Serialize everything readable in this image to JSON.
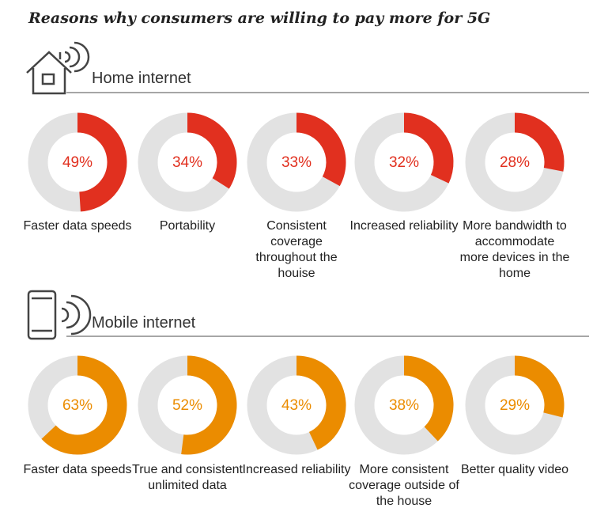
{
  "title": "Reasons why consumers are willing to pay more for 5G",
  "chart_data": [
    {
      "type": "donut",
      "title": "Home internet",
      "color": "#e1301f",
      "track_color": "#e2e2e2",
      "categories": [
        "Faster data speeds",
        "Portability",
        "Consistent coverage throughout the houise",
        "Increased reliability",
        "More bandwidth to accommodate more devices in the home"
      ],
      "values": [
        49,
        34,
        33,
        32,
        28
      ],
      "value_labels": [
        "49%",
        "34%",
        "33%",
        "32%",
        "28%"
      ]
    },
    {
      "type": "donut",
      "title": "Mobile internet",
      "color": "#eb8c00",
      "track_color": "#e2e2e2",
      "categories": [
        "Faster data speeds",
        "True and consistent unlimited data",
        "Increased reliability",
        "More consistent coverage outside of the house",
        "Better quality video"
      ],
      "values": [
        63,
        52,
        43,
        38,
        29
      ],
      "value_labels": [
        "63%",
        "52%",
        "43%",
        "38%",
        "29%"
      ]
    }
  ]
}
